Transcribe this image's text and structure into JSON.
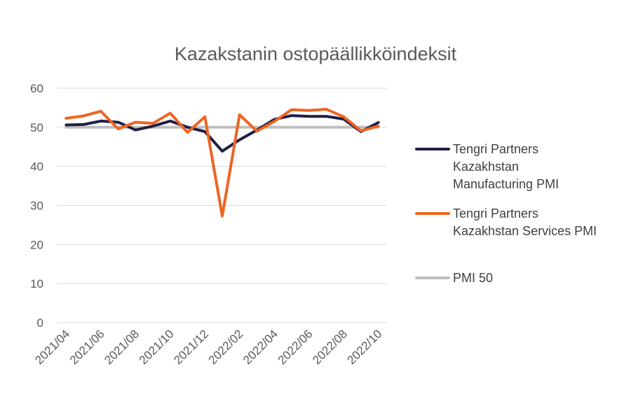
{
  "chart_data": {
    "type": "line",
    "title": "Kazakstanin ostopäällikköindeksit",
    "xlabel": "",
    "ylabel": "",
    "ylim": [
      0,
      60
    ],
    "yticks": [
      "0",
      "10",
      "20",
      "30",
      "40",
      "50",
      "60"
    ],
    "x": [
      "2021/04",
      "2021/05",
      "2021/06",
      "2021/07",
      "2021/08",
      "2021/09",
      "2021/10",
      "2021/11",
      "2021/12",
      "2022/01",
      "2022/02",
      "2022/03",
      "2022/04",
      "2022/05",
      "2022/06",
      "2022/07",
      "2022/08",
      "2022/09",
      "2022/10"
    ],
    "xtick_labels": [
      "2021/04",
      "2021/06",
      "2021/08",
      "2021/10",
      "2021/12",
      "2022/02",
      "2022/04",
      "2022/06",
      "2022/08",
      "2022/10"
    ],
    "grid": true,
    "legend_position": "right",
    "series": [
      {
        "name_lines": [
          "Tengri Partners",
          "Kazakhstan",
          "Manufacturing PMI"
        ],
        "color": "#1f1f46",
        "values": [
          50.6,
          50.7,
          51.6,
          51.3,
          49.3,
          50.3,
          51.6,
          50.0,
          48.9,
          43.9,
          46.8,
          49.3,
          52.0,
          53.0,
          52.8,
          52.8,
          52.1,
          48.9,
          51.2
        ]
      },
      {
        "name_lines": [
          "Tengri Partners",
          "Kazakhstan Services PMI"
        ],
        "color": "#ee6522",
        "values": [
          52.3,
          52.9,
          54.1,
          49.6,
          51.3,
          51.0,
          53.6,
          48.7,
          52.7,
          27.3,
          53.2,
          49.0,
          51.5,
          54.5,
          54.3,
          54.6,
          52.7,
          49.1,
          50.3
        ]
      },
      {
        "name_lines": [
          "PMI 50"
        ],
        "color": "#bfbfbf",
        "values": [
          50,
          50,
          50,
          50,
          50,
          50,
          50,
          50,
          50,
          50,
          50,
          50,
          50,
          50,
          50,
          50,
          50,
          50,
          50
        ]
      }
    ]
  }
}
